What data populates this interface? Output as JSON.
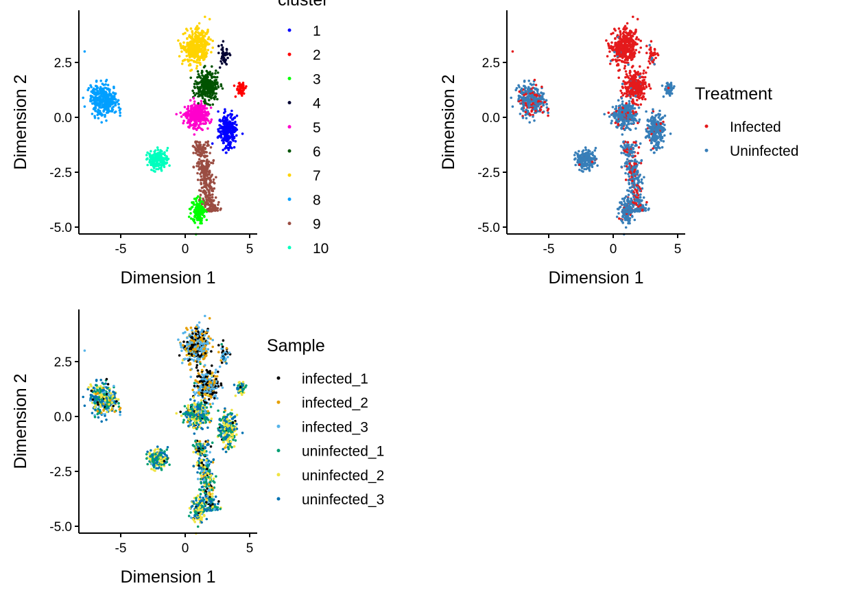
{
  "chart_data": [
    {
      "type": "scatter",
      "xlabel": "Dimension 1",
      "ylabel": "Dimension 2",
      "xticks": [
        -5,
        0,
        5
      ],
      "yticks": [
        2.5,
        0.0,
        -2.5,
        -5.0
      ],
      "ytick_labels": [
        "2.5",
        "0.0",
        "-2.5",
        "-5.0"
      ],
      "xlim": [
        -8.2,
        5.6
      ],
      "ylim": [
        -5.3,
        4.9
      ],
      "grid": false,
      "color_by": "cluster",
      "legend": {
        "title": "cluster",
        "placement": "right",
        "entries": [
          {
            "label": "1",
            "color": "#0000FF"
          },
          {
            "label": "2",
            "color": "#FF0000"
          },
          {
            "label": "3",
            "color": "#00FF00"
          },
          {
            "label": "4",
            "color": "#000033"
          },
          {
            "label": "5",
            "color": "#FF00CC"
          },
          {
            "label": "6",
            "color": "#005300"
          },
          {
            "label": "7",
            "color": "#FFD300"
          },
          {
            "label": "8",
            "color": "#009FFF"
          },
          {
            "label": "9",
            "color": "#9A4D42"
          },
          {
            "label": "10",
            "color": "#00FFBE"
          }
        ]
      }
    },
    {
      "type": "scatter",
      "xlabel": "Dimension 1",
      "ylabel": "Dimension 2",
      "xticks": [
        -5,
        0,
        5
      ],
      "yticks": [
        2.5,
        0.0,
        -2.5,
        -5.0
      ],
      "ytick_labels": [
        "2.5",
        "0.0",
        "-2.5",
        "-5.0"
      ],
      "xlim": [
        -8.2,
        5.6
      ],
      "ylim": [
        -5.3,
        4.9
      ],
      "grid": false,
      "color_by": "Treatment",
      "legend": {
        "title": "Treatment",
        "placement": "right",
        "entries": [
          {
            "label": "Infected",
            "color": "#E41A1C"
          },
          {
            "label": "Uninfected",
            "color": "#377EB8"
          }
        ]
      }
    },
    {
      "type": "scatter",
      "xlabel": "Dimension 1",
      "ylabel": "Dimension 2",
      "xticks": [
        -5,
        0,
        5
      ],
      "yticks": [
        2.5,
        0.0,
        -2.5,
        -5.0
      ],
      "ytick_labels": [
        "2.5",
        "0.0",
        "-2.5",
        "-5.0"
      ],
      "xlim": [
        -8.2,
        5.6
      ],
      "ylim": [
        -5.3,
        4.9
      ],
      "grid": false,
      "color_by": "Sample",
      "legend": {
        "title": "Sample",
        "placement": "right",
        "entries": [
          {
            "label": "infected_1",
            "color": "#000000"
          },
          {
            "label": "infected_2",
            "color": "#E69F00"
          },
          {
            "label": "infected_3",
            "color": "#56B4E9"
          },
          {
            "label": "uninfected_1",
            "color": "#009E73"
          },
          {
            "label": "uninfected_2",
            "color": "#F0E442"
          },
          {
            "label": "uninfected_3",
            "color": "#0072B2"
          }
        ]
      }
    }
  ],
  "clusters": [
    {
      "cluster": "1",
      "center": [
        3.3,
        -0.6
      ],
      "spread": [
        0.5,
        0.55
      ],
      "infected_fraction": 0.05
    },
    {
      "cluster": "2",
      "center": [
        4.3,
        1.3
      ],
      "spread": [
        0.25,
        0.2
      ],
      "infected_fraction": 0.02
    },
    {
      "cluster": "3",
      "center": [
        1.0,
        -4.2
      ],
      "spread": [
        0.4,
        0.4
      ],
      "infected_fraction": 0.1
    },
    {
      "cluster": "4",
      "center": [
        3.0,
        2.8
      ],
      "spread": [
        0.3,
        0.4
      ],
      "infected_fraction": 0.8
    },
    {
      "cluster": "5",
      "center": [
        0.9,
        0.1
      ],
      "spread": [
        0.6,
        0.4
      ],
      "infected_fraction": 0.08
    },
    {
      "cluster": "6",
      "center": [
        1.7,
        1.4
      ],
      "spread": [
        0.6,
        0.45
      ],
      "infected_fraction": 0.95
    },
    {
      "cluster": "7",
      "center": [
        0.8,
        3.2
      ],
      "spread": [
        0.7,
        0.55
      ],
      "infected_fraction": 0.98
    },
    {
      "cluster": "8",
      "center": [
        -6.3,
        0.8
      ],
      "spread": [
        0.75,
        0.5
      ],
      "infected_fraction": 0.25
    },
    {
      "cluster": "9",
      "center": [
        1.6,
        -2.7
      ],
      "spread": [
        0.5,
        1.0
      ],
      "infected_fraction": 0.3
    },
    {
      "cluster": "10",
      "center": [
        -2.1,
        -1.9
      ],
      "spread": [
        0.55,
        0.3
      ],
      "infected_fraction": 0.03
    }
  ]
}
